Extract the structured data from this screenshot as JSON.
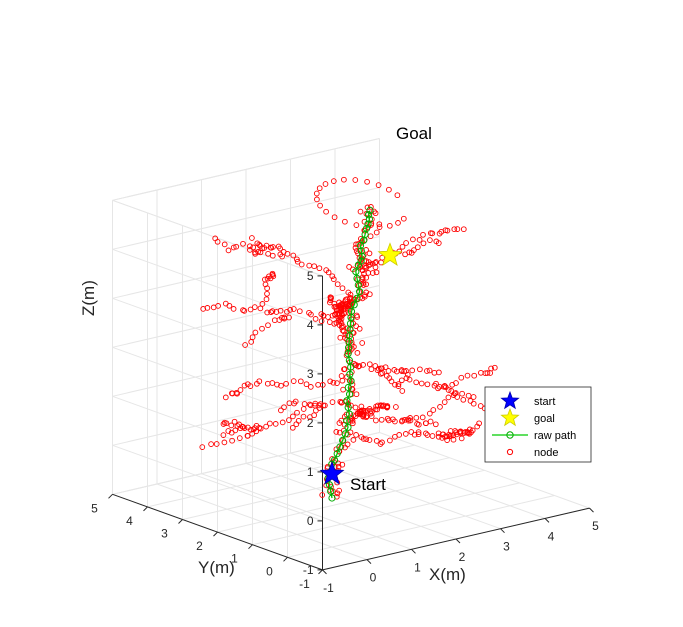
{
  "chart_data": {
    "type": "scatter",
    "projection": "3d",
    "title": "",
    "xlabel": "X(m)",
    "ylabel": "Y(m)",
    "zlabel": "Z(m)",
    "xlim": [
      -1,
      5
    ],
    "ylim": [
      -1,
      5
    ],
    "zlim": [
      -1,
      5
    ],
    "x_ticks": [
      "-1",
      "0",
      "1",
      "2",
      "3",
      "4",
      "5"
    ],
    "y_ticks": [
      "-1",
      "0",
      "1",
      "2",
      "3",
      "4",
      "5"
    ],
    "z_ticks": [
      "-1",
      "0",
      "1",
      "2",
      "3",
      "4",
      "5"
    ],
    "grid": true,
    "legend_position": "bottom-right",
    "colors": {
      "start": "#0000ff",
      "goal": "#ffff00",
      "raw_path": "#00cc00",
      "node": "#ff0000",
      "axis": "#262626",
      "grid": "#e6e6e6"
    },
    "annotations": [
      {
        "text": "Start",
        "point": [
          0,
          0,
          0
        ]
      },
      {
        "text": "Goal",
        "point": [
          4,
          4,
          4
        ]
      }
    ],
    "series": [
      {
        "name": "start",
        "marker": "pentagram",
        "points": [
          [
            0,
            0,
            0
          ]
        ]
      },
      {
        "name": "goal",
        "marker": "pentagram",
        "points": [
          [
            4,
            4,
            4
          ]
        ]
      },
      {
        "name": "raw path",
        "marker": "circle-line",
        "points": [
          [
            0,
            0,
            0
          ],
          [
            0.05,
            0.1,
            0.1
          ],
          [
            0.1,
            0.2,
            0.2
          ],
          [
            0.15,
            0.3,
            0.3
          ],
          [
            0.25,
            0.35,
            0.4
          ],
          [
            0.35,
            0.45,
            0.5
          ],
          [
            0.45,
            0.5,
            0.55
          ],
          [
            0.55,
            0.55,
            0.65
          ],
          [
            0.65,
            0.6,
            0.75
          ],
          [
            0.75,
            0.65,
            0.85
          ],
          [
            0.85,
            0.7,
            0.95
          ],
          [
            0.95,
            0.75,
            1.05
          ],
          [
            1.0,
            0.85,
            1.15
          ],
          [
            1.1,
            0.9,
            1.25
          ],
          [
            1.15,
            1.0,
            1.35
          ],
          [
            1.2,
            1.1,
            1.45
          ],
          [
            1.3,
            1.15,
            1.55
          ],
          [
            1.35,
            1.25,
            1.65
          ],
          [
            1.45,
            1.3,
            1.75
          ],
          [
            1.5,
            1.4,
            1.85
          ],
          [
            1.6,
            1.5,
            1.95
          ],
          [
            1.65,
            1.6,
            2.05
          ],
          [
            1.7,
            1.7,
            2.15
          ],
          [
            1.75,
            1.75,
            2.25
          ],
          [
            1.8,
            1.8,
            2.35
          ],
          [
            1.85,
            1.85,
            2.45
          ],
          [
            1.9,
            1.9,
            2.55
          ],
          [
            1.95,
            1.95,
            2.65
          ],
          [
            2.0,
            2.0,
            2.75
          ],
          [
            2.05,
            2.05,
            2.85
          ],
          [
            2.15,
            2.1,
            2.95
          ],
          [
            2.25,
            2.15,
            3.05
          ],
          [
            2.35,
            2.2,
            3.15
          ],
          [
            2.4,
            2.3,
            3.25
          ],
          [
            2.45,
            2.4,
            3.35
          ],
          [
            2.5,
            2.5,
            3.45
          ],
          [
            2.6,
            2.55,
            3.55
          ],
          [
            2.7,
            2.6,
            3.6
          ],
          [
            2.8,
            2.7,
            3.65
          ],
          [
            2.9,
            2.85,
            3.7
          ],
          [
            3.0,
            3.0,
            3.75
          ],
          [
            3.15,
            3.1,
            3.8
          ],
          [
            3.3,
            3.25,
            3.85
          ],
          [
            3.45,
            3.4,
            3.9
          ],
          [
            3.6,
            3.55,
            3.92
          ],
          [
            3.75,
            3.7,
            3.95
          ],
          [
            3.85,
            3.85,
            3.98
          ],
          [
            4,
            4,
            4
          ]
        ]
      },
      {
        "name": "node",
        "marker": "circle",
        "points": []
      }
    ]
  },
  "legend": {
    "start": "start",
    "goal": "goal",
    "raw_path": "raw path",
    "node": "node"
  }
}
